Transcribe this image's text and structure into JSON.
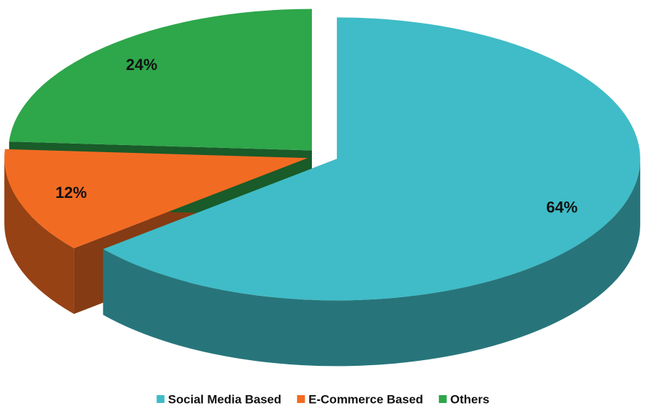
{
  "chart_data": {
    "type": "pie",
    "categories": [
      "Social Media Based",
      "E-Commerce Based",
      "Others"
    ],
    "values": [
      64,
      12,
      24
    ],
    "value_labels": [
      "64%",
      "12%",
      "24%"
    ],
    "colors": [
      "#3fbcc7",
      "#f26b22",
      "#2ea64a"
    ],
    "legend": "bottom"
  }
}
